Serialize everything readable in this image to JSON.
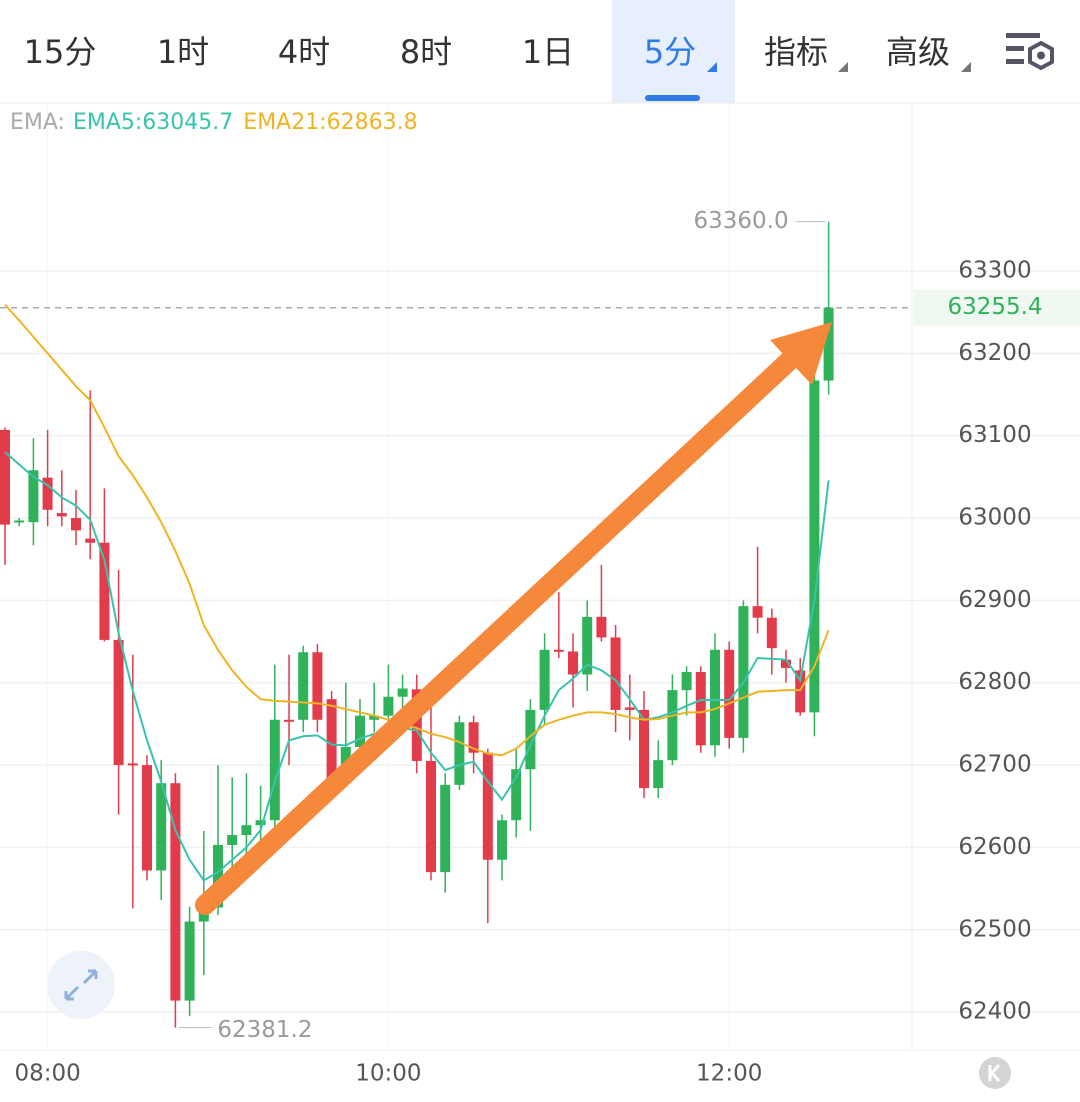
{
  "tabs": {
    "items": [
      "15分",
      "1时",
      "4时",
      "8时",
      "1日",
      "5分",
      "指标",
      "高级"
    ],
    "active": 5
  },
  "chart_data": {
    "type": "candlestick",
    "indicator_label": "EMA:",
    "x": [
      "07:45",
      "07:50",
      "07:55",
      "08:00",
      "08:05",
      "08:10",
      "08:15",
      "08:20",
      "08:25",
      "08:30",
      "08:35",
      "08:40",
      "08:45",
      "08:50",
      "08:55",
      "09:00",
      "09:05",
      "09:10",
      "09:15",
      "09:20",
      "09:25",
      "09:30",
      "09:35",
      "09:40",
      "09:45",
      "09:50",
      "09:55",
      "10:00",
      "10:05",
      "10:10",
      "10:15",
      "10:20",
      "10:25",
      "10:30",
      "10:35",
      "10:40",
      "10:45",
      "10:50",
      "10:55",
      "11:00",
      "11:05",
      "11:10",
      "11:15",
      "11:20",
      "11:25",
      "11:30",
      "11:35",
      "11:40",
      "11:45",
      "11:50",
      "11:55",
      "12:00",
      "12:05",
      "12:10",
      "12:15",
      "12:20",
      "12:25",
      "12:30",
      "12:35"
    ],
    "open": [
      63107,
      62995,
      62995,
      63049,
      63006,
      63000,
      62975,
      62970,
      62852,
      62702,
      62700,
      62572,
      62678,
      62414,
      62510,
      62527,
      62603,
      62615,
      62627,
      62633,
      62755,
      62755,
      62837,
      62780,
      62700,
      62722,
      62755,
      62760,
      62783,
      62792,
      62705,
      62570,
      62676,
      62752,
      62715,
      62585,
      62633,
      62695,
      62767,
      62840,
      62838,
      62810,
      62880,
      62855,
      62770,
      62767,
      62672,
      62706,
      62791,
      62813,
      62724,
      62840,
      62733,
      62893,
      62879,
      62828,
      62815,
      62764,
      63167
    ],
    "high": [
      63110,
      63000,
      63097,
      63107,
      63058,
      63034,
      63155,
      63036,
      62937,
      62834,
      62712,
      62706,
      62690,
      62528,
      62620,
      62700,
      62685,
      62690,
      62675,
      62822,
      62834,
      62845,
      62847,
      62790,
      62800,
      62780,
      62800,
      62822,
      62810,
      62810,
      62775,
      62690,
      62760,
      62760,
      62720,
      62640,
      62720,
      62780,
      62860,
      62910,
      62860,
      62900,
      62943,
      62870,
      62810,
      62790,
      62730,
      62810,
      62820,
      62820,
      62860,
      62850,
      62900,
      62965,
      62890,
      62840,
      62830,
      63200,
      63360
    ],
    "low": [
      62943,
      62990,
      62967,
      62990,
      62990,
      62967,
      62950,
      62850,
      62640,
      62526,
      62560,
      62536,
      62381.2,
      62395,
      62445,
      62518,
      62572,
      62590,
      62600,
      62620,
      62700,
      62740,
      62740,
      62665,
      62680,
      62720,
      62740,
      62730,
      62760,
      62690,
      62560,
      62545,
      62670,
      62690,
      62508,
      62560,
      62612,
      62620,
      62750,
      62830,
      62770,
      62790,
      62850,
      62740,
      62730,
      62660,
      62660,
      62700,
      62760,
      62715,
      62710,
      62720,
      62715,
      62860,
      62810,
      62800,
      62760,
      62735,
      63150
    ],
    "close": [
      62992,
      62997,
      63058,
      63010,
      63002,
      62985,
      62970,
      62852,
      62700,
      62700,
      62572,
      62678,
      62414,
      62510,
      62527,
      62603,
      62615,
      62627,
      62633,
      62755,
      62753,
      62837,
      62755,
      62676,
      62722,
      62760,
      62760,
      62783,
      62793,
      62705,
      62570,
      62676,
      62752,
      62715,
      62585,
      62633,
      62695,
      62767,
      62840,
      62838,
      62810,
      62880,
      62855,
      62767,
      62767,
      62672,
      62706,
      62791,
      62813,
      62724,
      62840,
      62733,
      62893,
      62879,
      62842,
      62818,
      62764,
      63167,
      63255.4
    ],
    "up_color": "#2fb25a",
    "down_color": "#e23c4c",
    "series": [
      {
        "name": "EMA5:63045.7",
        "color": "#39c3ad",
        "values": [
          63080,
          63065,
          63050,
          63040,
          63025,
          63015,
          62998,
          62949,
          62860,
          62790,
          62730,
          62680,
          62621,
          62585,
          62560,
          62570,
          62585,
          62600,
          62621,
          62680,
          62730,
          62735,
          62736,
          62725,
          62724,
          62732,
          62738,
          62742,
          62745,
          62742,
          62715,
          62694,
          62700,
          62704,
          62680,
          62658,
          62685,
          62724,
          62760,
          62791,
          62805,
          62822,
          62815,
          62803,
          62780,
          62755,
          62758,
          62764,
          62772,
          62779,
          62779,
          62779,
          62800,
          62830,
          62829,
          62828,
          62803,
          62900,
          63045.7
        ]
      },
      {
        "name": "EMA21:62863.8",
        "color": "#efb424",
        "values": [
          63259,
          63240,
          63220,
          63200,
          63180,
          63160,
          63143,
          63110,
          63075,
          63052,
          63025,
          62995,
          62960,
          62920,
          62870,
          62840,
          62815,
          62795,
          62780,
          62778,
          62777,
          62776,
          62775,
          62772,
          62768,
          62764,
          62760,
          62755,
          62750,
          62745,
          62738,
          62734,
          62728,
          62720,
          62714,
          62712,
          62720,
          62735,
          62749,
          62755,
          62760,
          62764,
          62764,
          62762,
          62758,
          62755,
          62756,
          62760,
          62764,
          62764,
          62768,
          62775,
          62782,
          62789,
          62790,
          62791,
          62791,
          62820,
          62863.8
        ]
      }
    ],
    "high_annotation": {
      "value": 63360,
      "label": "63360.0"
    },
    "low_annotation": 62381.2,
    "last_price": 63255.4,
    "ylim": [
      62354,
      63504
    ],
    "yticks": [
      62400,
      62500,
      62600,
      62700,
      62800,
      62900,
      63000,
      63100,
      63200,
      63300
    ],
    "xticks": [
      "08:00",
      "10:00",
      "12:00"
    ],
    "grid": true
  }
}
